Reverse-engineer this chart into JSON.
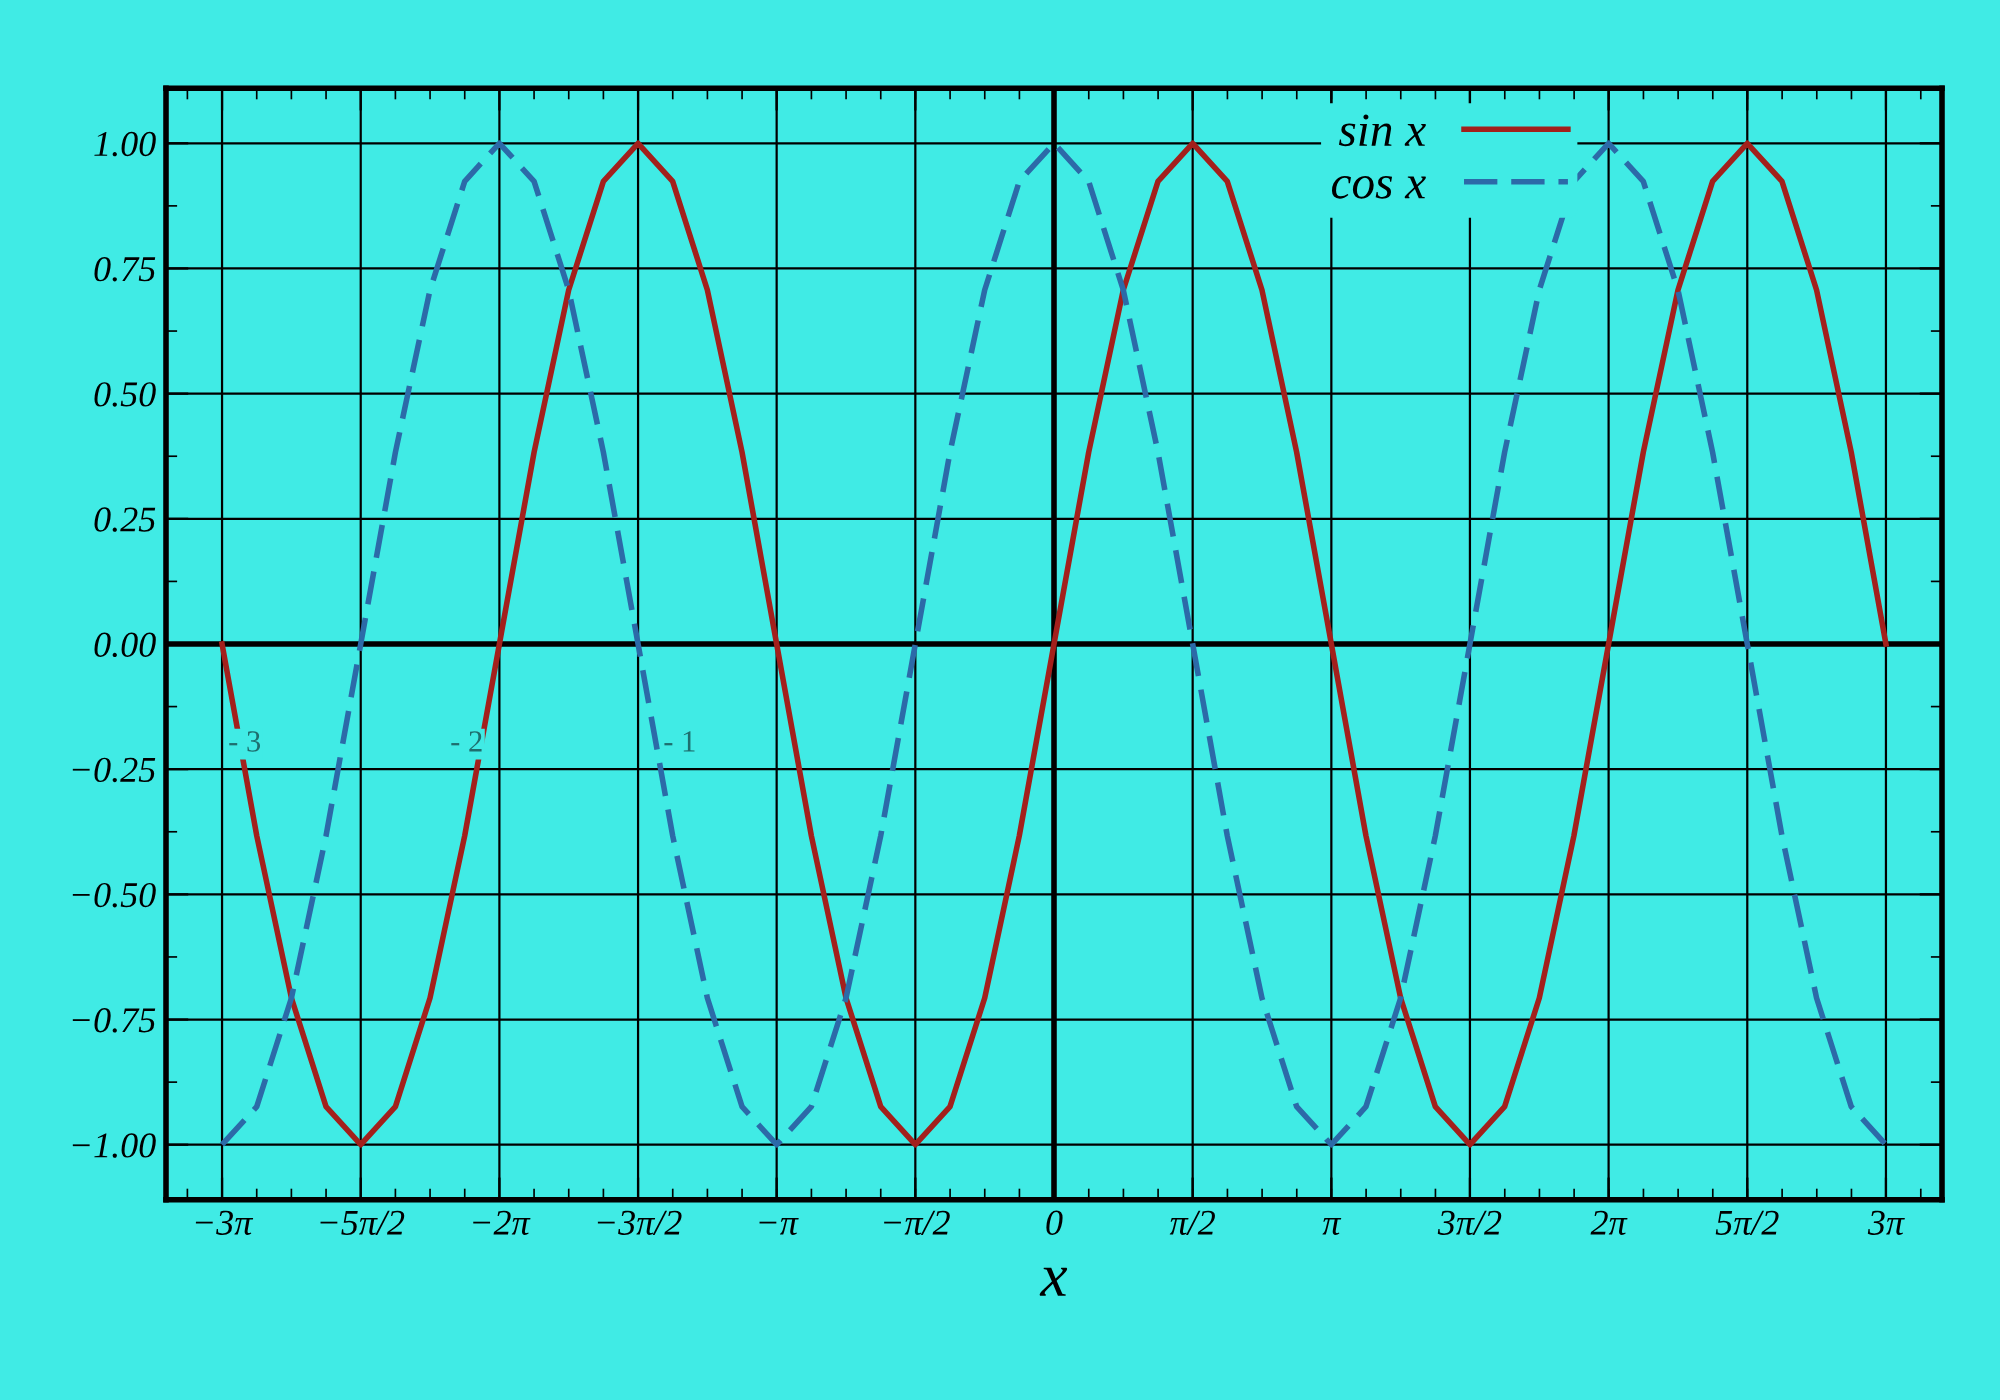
{
  "chart_data": {
    "type": "line",
    "xlabel": "x",
    "x": [
      -9.425,
      -9.032,
      -8.639,
      -8.247,
      -7.854,
      -7.461,
      -7.069,
      -6.676,
      -6.283,
      -5.89,
      -5.498,
      -5.105,
      -4.712,
      -4.32,
      -3.927,
      -3.534,
      -3.142,
      -2.749,
      -2.356,
      -1.963,
      -1.571,
      -1.178,
      -0.785,
      -0.393,
      0,
      0.393,
      0.785,
      1.178,
      1.571,
      1.963,
      2.356,
      2.749,
      3.142,
      3.534,
      3.927,
      4.32,
      4.712,
      5.105,
      5.498,
      5.89,
      6.283,
      6.676,
      7.069,
      7.461,
      7.854,
      8.247,
      8.639,
      9.032,
      9.425
    ],
    "series": [
      {
        "name": "sin x",
        "color": "#a3201c",
        "line_style": "solid",
        "values": [
          0,
          -0.383,
          -0.707,
          -0.924,
          -1,
          -0.924,
          -0.707,
          -0.383,
          0,
          0.383,
          0.707,
          0.924,
          1,
          0.924,
          0.707,
          0.383,
          0,
          -0.383,
          -0.707,
          -0.924,
          -1,
          -0.924,
          -0.707,
          -0.383,
          0,
          0.383,
          0.707,
          0.924,
          1,
          0.924,
          0.707,
          0.383,
          0,
          -0.383,
          -0.707,
          -0.924,
          -1,
          -0.924,
          -0.707,
          -0.383,
          0,
          0.383,
          0.707,
          0.924,
          1,
          0.924,
          0.707,
          0.383,
          0
        ]
      },
      {
        "name": "cos x",
        "color": "#2c6aa8",
        "line_style": "dashed",
        "values": [
          -1,
          -0.924,
          -0.707,
          -0.383,
          0,
          0.383,
          0.707,
          0.924,
          1,
          0.924,
          0.707,
          0.383,
          0,
          -0.383,
          -0.707,
          -0.924,
          -1,
          -0.924,
          -0.707,
          -0.383,
          0,
          0.383,
          0.707,
          0.924,
          1,
          0.924,
          0.707,
          0.383,
          0,
          -0.383,
          -0.707,
          -0.924,
          -1,
          -0.924,
          -0.707,
          -0.383,
          0,
          0.383,
          0.707,
          0.924,
          1,
          0.924,
          0.707,
          0.383,
          0,
          -0.383,
          -0.707,
          -0.924,
          -1
        ]
      }
    ],
    "xlim": [
      -10.06,
      10.06
    ],
    "ylim": [
      -1.11,
      1.11
    ],
    "xticks": [
      {
        "value": -9.425,
        "label": "−3π"
      },
      {
        "value": -7.854,
        "label": "−5π/2"
      },
      {
        "value": -6.283,
        "label": "−2π"
      },
      {
        "value": -4.712,
        "label": "−3π/2"
      },
      {
        "value": -3.142,
        "label": "−π"
      },
      {
        "value": -1.571,
        "label": "−π/2"
      },
      {
        "value": 0,
        "label": "0"
      },
      {
        "value": 1.571,
        "label": "π/2"
      },
      {
        "value": 3.142,
        "label": "π"
      },
      {
        "value": 4.712,
        "label": "3π/2"
      },
      {
        "value": 6.283,
        "label": "2π"
      },
      {
        "value": 7.854,
        "label": "5π/2"
      },
      {
        "value": 9.425,
        "label": "3π"
      }
    ],
    "yticks": [
      {
        "value": -1,
        "label": "−1.00"
      },
      {
        "value": -0.75,
        "label": "−0.75"
      },
      {
        "value": -0.5,
        "label": "−0.50"
      },
      {
        "value": -0.25,
        "label": "−0.25"
      },
      {
        "value": 0,
        "label": "0.00"
      },
      {
        "value": 0.25,
        "label": "0.25"
      },
      {
        "value": 0.5,
        "label": "0.50"
      },
      {
        "value": 0.75,
        "label": "0.75"
      },
      {
        "value": 1,
        "label": "1.00"
      }
    ],
    "annotations": [
      "- 3",
      "- 2",
      "- 1"
    ],
    "grid": true,
    "legend": "top right",
    "marker": "none"
  }
}
